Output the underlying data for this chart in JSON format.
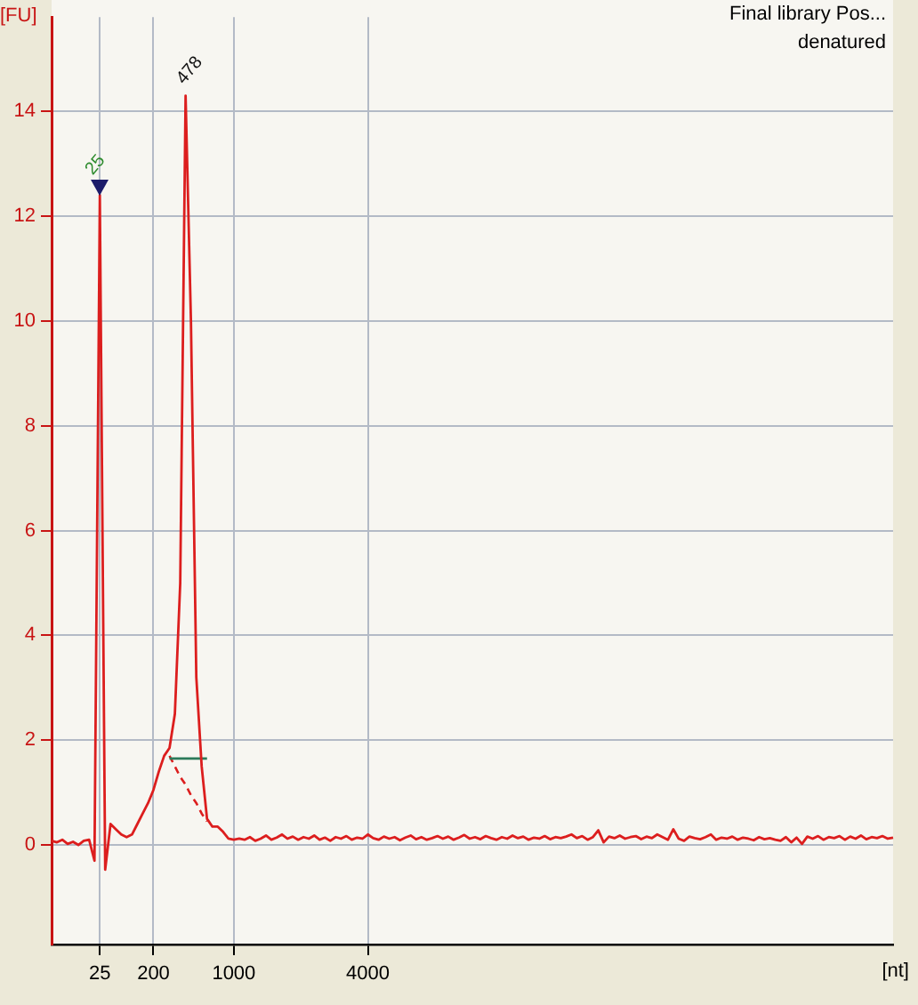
{
  "chart_data": {
    "type": "line",
    "title": "Final library Pos...",
    "subtitle": "denatured",
    "xlabel": "[nt]",
    "ylabel": "[FU]",
    "categories": [
      null,
      null,
      null,
      null,
      null,
      null,
      null,
      null,
      null,
      "25",
      null,
      null,
      null,
      null,
      null,
      null,
      null,
      null,
      null,
      "200",
      null,
      null,
      null,
      null,
      null,
      null,
      null,
      null,
      null,
      null,
      null,
      null,
      null,
      null,
      "1000",
      null,
      null,
      null,
      null,
      null,
      null,
      null,
      null,
      null,
      null,
      null,
      null,
      null,
      null,
      null,
      null,
      null,
      null,
      null,
      null,
      null,
      null,
      null,
      null,
      "4000",
      null,
      null,
      null,
      null,
      null,
      null,
      null,
      null,
      null,
      null,
      null,
      null,
      null,
      null,
      null,
      null,
      null,
      null,
      null,
      null,
      null,
      null,
      null,
      null,
      null,
      null,
      null,
      null,
      null,
      null,
      null,
      null,
      null,
      null,
      null,
      null,
      null,
      null,
      null,
      null,
      null,
      null,
      null,
      null,
      null,
      null,
      null,
      null,
      null,
      null,
      null,
      null,
      null,
      null,
      null,
      null,
      null,
      null,
      null,
      null,
      null,
      null,
      null,
      null,
      null,
      null,
      null,
      null,
      null,
      null,
      null,
      null,
      null,
      null,
      null,
      null,
      null,
      null,
      null,
      null,
      null,
      null,
      null,
      null,
      null,
      null,
      null,
      null,
      null,
      null,
      null,
      null,
      null,
      null,
      null,
      null,
      null,
      null
    ],
    "series": [
      {
        "color": "#dc1e1e",
        "values": [
          0.08,
          0.05,
          0.1,
          0.02,
          0.06,
          0.0,
          0.08,
          0.1,
          -0.3,
          12.4,
          -0.47,
          0.4,
          0.3,
          0.2,
          0.15,
          0.2,
          0.4,
          0.6,
          0.8,
          1.05,
          1.4,
          1.7,
          1.85,
          2.5,
          5.0,
          14.3,
          10.0,
          3.2,
          1.5,
          0.5,
          0.35,
          0.35,
          0.25,
          0.12,
          0.1,
          0.12,
          0.1,
          0.15,
          0.08,
          0.12,
          0.18,
          0.1,
          0.14,
          0.2,
          0.12,
          0.16,
          0.1,
          0.15,
          0.12,
          0.18,
          0.1,
          0.14,
          0.08,
          0.15,
          0.12,
          0.17,
          0.1,
          0.14,
          0.12,
          0.2,
          0.13,
          0.1,
          0.16,
          0.12,
          0.15,
          0.09,
          0.14,
          0.18,
          0.11,
          0.15,
          0.1,
          0.13,
          0.17,
          0.12,
          0.16,
          0.1,
          0.14,
          0.19,
          0.12,
          0.15,
          0.11,
          0.17,
          0.13,
          0.1,
          0.15,
          0.12,
          0.18,
          0.13,
          0.16,
          0.1,
          0.14,
          0.12,
          0.17,
          0.11,
          0.15,
          0.13,
          0.16,
          0.2,
          0.13,
          0.17,
          0.1,
          0.15,
          0.28,
          0.05,
          0.16,
          0.13,
          0.18,
          0.12,
          0.15,
          0.17,
          0.11,
          0.16,
          0.13,
          0.2,
          0.15,
          0.1,
          0.3,
          0.12,
          0.08,
          0.16,
          0.13,
          0.11,
          0.15,
          0.2,
          0.1,
          0.14,
          0.12,
          0.16,
          0.1,
          0.14,
          0.12,
          0.09,
          0.15,
          0.11,
          0.13,
          0.1,
          0.08,
          0.15,
          0.05,
          0.14,
          0.02,
          0.16,
          0.12,
          0.17,
          0.1,
          0.15,
          0.13,
          0.17,
          0.1,
          0.16,
          0.12,
          0.18,
          0.11,
          0.15,
          0.13,
          0.17,
          0.12,
          0.14
        ]
      },
      {
        "color": "#2b7a5a",
        "values": [
          null,
          null,
          null,
          null,
          null,
          null,
          null,
          null,
          null,
          null,
          null,
          null,
          null,
          null,
          null,
          null,
          null,
          null,
          null,
          null,
          null,
          null,
          1.65,
          1.65,
          1.65,
          1.65,
          1.65,
          1.65,
          1.65,
          1.65,
          null,
          null,
          null,
          null,
          null,
          null,
          null,
          null,
          null,
          null,
          null,
          null,
          null,
          null,
          null,
          null,
          null,
          null,
          null,
          null,
          null,
          null,
          null,
          null,
          null,
          null,
          null,
          null,
          null,
          null,
          null,
          null,
          null,
          null,
          null,
          null,
          null,
          null,
          null,
          null,
          null,
          null,
          null,
          null,
          null,
          null,
          null,
          null,
          null,
          null,
          null,
          null,
          null,
          null,
          null,
          null,
          null,
          null,
          null,
          null,
          null,
          null,
          null,
          null,
          null,
          null,
          null,
          null,
          null,
          null,
          null,
          null,
          null,
          null,
          null,
          null,
          null,
          null,
          null,
          null,
          null,
          null,
          null,
          null,
          null,
          null,
          null,
          null,
          null,
          null,
          null,
          null,
          null,
          null,
          null,
          null,
          null,
          null,
          null,
          null,
          null,
          null,
          null,
          null,
          null,
          null,
          null,
          null,
          null,
          null,
          null,
          null,
          null,
          null,
          null,
          null,
          null,
          null,
          null,
          null,
          null,
          null,
          null,
          null,
          null,
          null,
          null,
          null
        ]
      },
      {
        "color": "#dc1e1e",
        "line_style": "dashed",
        "values": [
          null,
          null,
          null,
          null,
          null,
          null,
          null,
          null,
          null,
          null,
          null,
          null,
          null,
          null,
          null,
          null,
          null,
          null,
          null,
          null,
          null,
          null,
          1.7,
          1.5,
          1.3,
          1.15,
          0.95,
          0.8,
          0.6,
          0.45,
          null,
          null,
          null,
          null,
          null,
          null,
          null,
          null,
          null,
          null,
          null,
          null,
          null,
          null,
          null,
          null,
          null,
          null,
          null,
          null,
          null,
          null,
          null,
          null,
          null,
          null,
          null,
          null,
          null,
          null,
          null,
          null,
          null,
          null,
          null,
          null,
          null,
          null,
          null,
          null,
          null,
          null,
          null,
          null,
          null,
          null,
          null,
          null,
          null,
          null,
          null,
          null,
          null,
          null,
          null,
          null,
          null,
          null,
          null,
          null,
          null,
          null,
          null,
          null,
          null,
          null,
          null,
          null,
          null,
          null,
          null,
          null,
          null,
          null,
          null,
          null,
          null,
          null,
          null,
          null,
          null,
          null,
          null,
          null,
          null,
          null,
          null,
          null,
          null,
          null,
          null,
          null,
          null,
          null,
          null,
          null,
          null,
          null,
          null,
          null,
          null,
          null,
          null,
          null,
          null,
          null,
          null,
          null,
          null,
          null,
          null,
          null,
          null,
          null,
          null,
          null,
          null,
          null,
          null,
          null,
          null,
          null,
          null,
          null,
          null,
          null,
          null,
          null
        ]
      }
    ],
    "ylim": [
      -1.9,
      15.8
    ],
    "yticks": [
      0,
      2,
      4,
      6,
      8,
      10,
      12,
      14
    ],
    "grid": true,
    "annotations": [
      {
        "text": "25",
        "x": "25",
        "y": 12.4
      },
      {
        "text": "478",
        "y": 14.3
      }
    ]
  }
}
